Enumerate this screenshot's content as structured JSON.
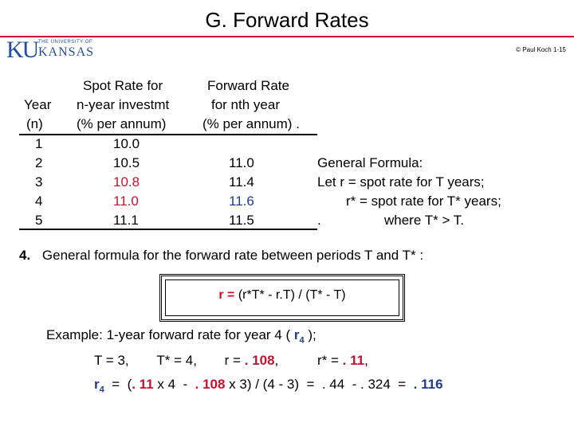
{
  "title": "G.  Forward Rates",
  "logo": {
    "prefix": "KU",
    "small": "THE UNIVERSITY OF",
    "name": "KANSAS"
  },
  "copyright": "© Paul Koch 1-15",
  "table": {
    "headers": {
      "year": [
        "Year",
        "(n)"
      ],
      "spot": [
        "Spot Rate for",
        "n-year investmt",
        "(% per annum)"
      ],
      "forward": [
        "Forward Rate",
        "for nth year",
        "(% per annum) ."
      ]
    },
    "rows": [
      {
        "year": "1",
        "spot": "10.0",
        "forward": ""
      },
      {
        "year": "2",
        "spot": "10.5",
        "forward": "11.0"
      },
      {
        "year": "3",
        "spot": "10.8",
        "forward": "11.4"
      },
      {
        "year": "4",
        "spot": "11.0",
        "forward": "11.6"
      },
      {
        "year": "5",
        "spot": "11.1",
        "forward": "11.5"
      }
    ]
  },
  "general": {
    "line1": "General Formula:",
    "line2": "Let  r  = spot rate for T   years;",
    "line3": "r* = spot rate for T* years;",
    "dot": ".",
    "line4": "where  T* > T."
  },
  "section": {
    "number": "4.",
    "text": "General formula  for the  forward rate  between periods  T  and  T* :"
  },
  "formula": {
    "lhs": "r = ",
    "rhs": " (r*T* - r.T) / (T* - T)"
  },
  "example": {
    "line1_pre": "Example:  1-year  forward rate  for year 4  ( ",
    "line1_var": "r",
    "line1_sub": "4",
    "line1_post": " );",
    "line2_a": "T = 3,",
    "line2_b": "T* = 4,",
    "line2_c_pre": "r = ",
    "line2_c_val": ". 108",
    "line2_c_post": ",",
    "line2_d_pre": "r* = ",
    "line2_d_val": ". 11",
    "line2_d_post": ",",
    "line3_var": "r",
    "line3_sub": "4",
    "line3_a": "  =  (",
    "line3_b": ". 11",
    "line3_c": " x 4  -  ",
    "line3_d": ". 108",
    "line3_e": " x 3) / (4 - 3)  =  . 44  - . 324  =  ",
    "line3_f": ". 116"
  }
}
